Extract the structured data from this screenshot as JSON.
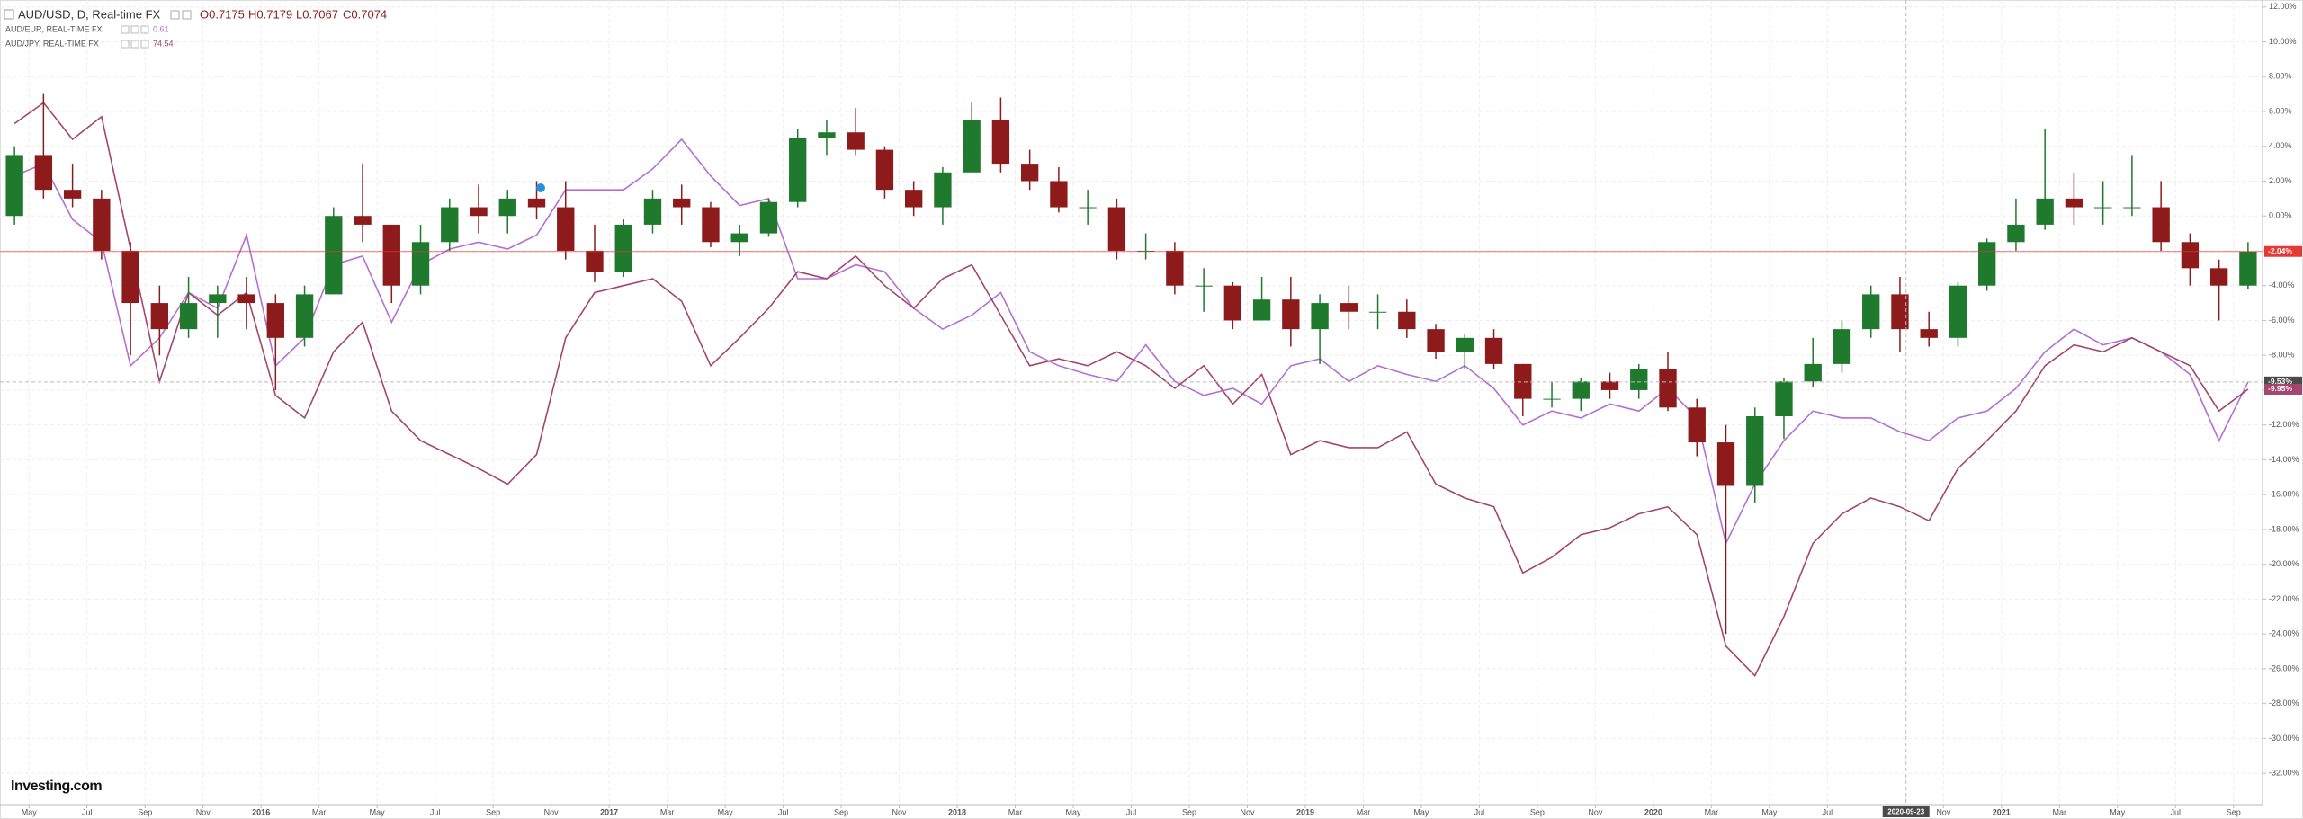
{
  "chart_data": {
    "type": "candlestick",
    "quote": [
      "O0.7175",
      "H0.7179",
      "L0.7067",
      "C0.7074"
    ],
    "logo": "Investing.com",
    "x": [
      "2015-04",
      "2015-05",
      "2015-06",
      "2015-07",
      "2015-08",
      "2015-09",
      "2015-10",
      "2015-11",
      "2015-12",
      "2016-01",
      "2016-02",
      "2016-03",
      "2016-04",
      "2016-05",
      "2016-06",
      "2016-07",
      "2016-08",
      "2016-09",
      "2016-10",
      "2016-11",
      "2016-12",
      "2017-01",
      "2017-02",
      "2017-03",
      "2017-04",
      "2017-05",
      "2017-06",
      "2017-07",
      "2017-08",
      "2017-09",
      "2017-10",
      "2017-11",
      "2017-12",
      "2018-01",
      "2018-02",
      "2018-03",
      "2018-04",
      "2018-05",
      "2018-06",
      "2018-07",
      "2018-08",
      "2018-09",
      "2018-10",
      "2018-11",
      "2018-12",
      "2019-01",
      "2019-02",
      "2019-03",
      "2019-04",
      "2019-05",
      "2019-06",
      "2019-07",
      "2019-08",
      "2019-09",
      "2019-10",
      "2019-11",
      "2019-12",
      "2020-01",
      "2020-02",
      "2020-03",
      "2020-04",
      "2020-05",
      "2020-06",
      "2020-07",
      "2020-08",
      "2020-09",
      "2020-10",
      "2020-11",
      "2020-12",
      "2021-01",
      "2021-02",
      "2021-03",
      "2021-04",
      "2021-05",
      "2021-06",
      "2021-07",
      "2021-08",
      "2021-09"
    ],
    "series": [
      {
        "name": "AUD/USD, D, Real-time FX",
        "type": "candlestick",
        "up_color": "#1f7a2e",
        "down_color": "#8e1b1b",
        "color": "#e53935",
        "last_value_label": "-2.04%",
        "open": [
          0,
          3.5,
          1.5,
          1.0,
          -2.0,
          -5.0,
          -6.5,
          -5.0,
          -4.5,
          -5.0,
          -7.0,
          -4.5,
          0.0,
          -0.5,
          -4.0,
          -1.5,
          0.5,
          0.0,
          1.0,
          0.5,
          -2.0,
          -3.2,
          -0.5,
          1.0,
          0.5,
          -1.5,
          -1.0,
          0.8,
          4.5,
          4.8,
          3.8,
          1.5,
          0.5,
          2.5,
          5.5,
          3.0,
          2.0,
          0.5,
          0.5,
          -2.0,
          -2.0,
          -4.0,
          -4.0,
          -6.0,
          -4.8,
          -6.5,
          -5.0,
          -5.5,
          -5.5,
          -6.5,
          -7.8,
          -7.0,
          -8.5,
          -10.5,
          -10.5,
          -9.5,
          -10.0,
          -8.8,
          -11.0,
          -13.0,
          -15.5,
          -11.5,
          -9.5,
          -8.5,
          -6.5,
          -4.5,
          -6.5,
          -7.0,
          -4.0,
          -1.5,
          -0.5,
          1.0,
          0.5,
          0.5,
          0.5,
          -1.5,
          -3.0,
          -4.0
        ],
        "high": [
          4,
          7,
          3,
          1.5,
          -1.5,
          -4,
          -3.5,
          -4,
          -3.5,
          -4.5,
          -4,
          0.5,
          3,
          -0.5,
          -0.5,
          1,
          1.8,
          1.5,
          2,
          2,
          -0.5,
          -0.2,
          1.5,
          1.8,
          0.8,
          -0.5,
          1,
          5,
          5.5,
          6.2,
          4,
          2,
          2.8,
          6.5,
          6.8,
          3.8,
          2.8,
          1.5,
          1,
          -1,
          -1.5,
          -3,
          -3.8,
          -3.5,
          -3.5,
          -4.5,
          -4,
          -4.5,
          -4.8,
          -6.2,
          -6.8,
          -6.5,
          -8.5,
          -9.5,
          -9.3,
          -9,
          -8.5,
          -7.8,
          -10.5,
          -12,
          -11,
          -9.3,
          -7,
          -6,
          -4,
          -3.5,
          -5.5,
          -3.8,
          -1.3,
          1,
          5,
          2.5,
          2,
          3.5,
          2,
          -1,
          -2.5,
          -1.5
        ],
        "low": [
          -0.5,
          1,
          0.5,
          -2.5,
          -8,
          -8,
          -7,
          -7,
          -6.5,
          -10,
          -7.5,
          -4.5,
          -1.5,
          -5,
          -4.5,
          -2,
          -1,
          -1,
          -0.2,
          -2.5,
          -3.8,
          -3.5,
          -1,
          -0.5,
          -1.8,
          -2.3,
          -1.2,
          0.5,
          3.5,
          3.5,
          1,
          0,
          -0.5,
          2.5,
          2.5,
          1.5,
          0.2,
          -0.5,
          -2.5,
          -2.5,
          -4.5,
          -5.5,
          -6.5,
          -6,
          -7.5,
          -8.5,
          -6.5,
          -6.5,
          -7,
          -8.2,
          -8.8,
          -8.8,
          -11.5,
          -11,
          -11.2,
          -10.5,
          -10.5,
          -11.2,
          -13.8,
          -24,
          -16.5,
          -12.8,
          -9.8,
          -9,
          -7,
          -7.8,
          -7.5,
          -7.5,
          -4.3,
          -2,
          -0.8,
          -0.5,
          -0.5,
          0,
          -2,
          -4,
          -6,
          -4.2
        ],
        "close": [
          3.5,
          1.5,
          1.0,
          -2.0,
          -5.0,
          -6.5,
          -5.0,
          -4.5,
          -5.0,
          -7.0,
          -4.5,
          0.0,
          -0.5,
          -4.0,
          -1.5,
          0.5,
          0.0,
          1.0,
          0.5,
          -2.0,
          -3.2,
          -0.5,
          1.0,
          0.5,
          -1.5,
          -1.0,
          0.8,
          4.5,
          4.8,
          3.8,
          1.5,
          0.5,
          2.5,
          5.5,
          3.0,
          2.0,
          0.5,
          0.5,
          -2.0,
          -2.0,
          -4.0,
          -4.0,
          -6.0,
          -4.8,
          -6.5,
          -5.0,
          -5.5,
          -5.5,
          -6.5,
          -7.8,
          -7.0,
          -8.5,
          -10.5,
          -10.5,
          -9.5,
          -10.0,
          -8.8,
          -11.0,
          -13.0,
          -15.5,
          -11.5,
          -9.5,
          -8.5,
          -6.5,
          -4.5,
          -6.5,
          -7.0,
          -4.0,
          -1.5,
          -0.5,
          1.0,
          0.5,
          0.5,
          0.5,
          -1.5,
          -3.0,
          -4.0,
          -2.04
        ]
      },
      {
        "name": "AUD/EUR, REAL-TIME FX",
        "type": "line",
        "color": "#b36fd1",
        "price": 0.61,
        "values": [
          2.3,
          3.0,
          -0.2,
          -1.5,
          -8.6,
          -7.0,
          -4.4,
          -5.3,
          -1.1,
          -8.6,
          -7.0,
          -2.8,
          -2.3,
          -6.1,
          -2.8,
          -1.9,
          -1.5,
          -1.9,
          -1.1,
          1.5,
          1.5,
          1.5,
          2.7,
          4.4,
          2.3,
          0.6,
          1.0,
          -3.6,
          -3.6,
          -2.8,
          -3.2,
          -5.3,
          -6.5,
          -5.7,
          -4.4,
          -7.8,
          -8.6,
          -9.1,
          -9.5,
          -7.4,
          -9.5,
          -10.3,
          -9.9,
          -10.8,
          -8.6,
          -8.2,
          -9.5,
          -8.6,
          -9.1,
          -9.5,
          -8.6,
          -9.9,
          -12.0,
          -11.2,
          -11.6,
          -10.8,
          -11.2,
          -9.9,
          -11.6,
          -18.8,
          -15.4,
          -12.9,
          -11.2,
          -11.6,
          -11.6,
          -12.4,
          -12.9,
          -11.6,
          -11.2,
          -9.9,
          -7.8,
          -6.5,
          -7.4,
          -7.0,
          -7.8,
          -9.1,
          -12.9,
          -9.53
        ]
      },
      {
        "name": "AUD/JPY, REAL-TIME FX",
        "type": "line",
        "color": "#a4456f",
        "price": 74.54,
        "last_value_label": "-9.95%",
        "values": [
          5.3,
          6.5,
          4.4,
          5.7,
          -1.9,
          -9.5,
          -4.4,
          -5.7,
          -4.4,
          -10.3,
          -11.6,
          -7.8,
          -6.1,
          -11.2,
          -12.9,
          -13.7,
          -14.5,
          -15.4,
          -13.7,
          -7.0,
          -4.4,
          -4.0,
          -3.6,
          -4.9,
          -8.6,
          -7.0,
          -5.3,
          -3.2,
          -3.6,
          -2.3,
          -4.0,
          -5.3,
          -3.6,
          -2.8,
          -5.7,
          -8.6,
          -8.2,
          -8.6,
          -7.8,
          -8.6,
          -9.9,
          -8.6,
          -10.8,
          -9.1,
          -13.7,
          -12.9,
          -13.3,
          -13.3,
          -12.4,
          -15.4,
          -16.2,
          -16.7,
          -20.5,
          -19.6,
          -18.3,
          -17.9,
          -17.1,
          -16.7,
          -18.3,
          -24.7,
          -26.4,
          -23.0,
          -18.8,
          -17.1,
          -16.2,
          -16.7,
          -17.5,
          -14.5,
          -12.9,
          -11.2,
          -8.6,
          -7.4,
          -7.8,
          -7.0,
          -7.8,
          -8.6,
          -11.2,
          -9.95
        ]
      }
    ],
    "crosshair": {
      "date": "2020-09-23",
      "value": -9.53,
      "label": "-9.53%"
    },
    "xlim": [
      "2015-04",
      "2021-10"
    ],
    "xticks": [
      {
        "value": "2015-05",
        "label": "May"
      },
      {
        "value": "2015-07",
        "label": "Jul"
      },
      {
        "value": "2015-09",
        "label": "Sep"
      },
      {
        "value": "2015-11",
        "label": "Nov"
      },
      {
        "value": "2016-01",
        "label": "2016"
      },
      {
        "value": "2016-03",
        "label": "Mar"
      },
      {
        "value": "2016-05",
        "label": "May"
      },
      {
        "value": "2016-07",
        "label": "Jul"
      },
      {
        "value": "2016-09",
        "label": "Sep"
      },
      {
        "value": "2016-11",
        "label": "Nov"
      },
      {
        "value": "2017-01",
        "label": "2017"
      },
      {
        "value": "2017-03",
        "label": "Mar"
      },
      {
        "value": "2017-05",
        "label": "May"
      },
      {
        "value": "2017-07",
        "label": "Jul"
      },
      {
        "value": "2017-09",
        "label": "Sep"
      },
      {
        "value": "2017-11",
        "label": "Nov"
      },
      {
        "value": "2018-01",
        "label": "2018"
      },
      {
        "value": "2018-03",
        "label": "Mar"
      },
      {
        "value": "2018-05",
        "label": "May"
      },
      {
        "value": "2018-07",
        "label": "Jul"
      },
      {
        "value": "2018-09",
        "label": "Sep"
      },
      {
        "value": "2018-11",
        "label": "Nov"
      },
      {
        "value": "2019-01",
        "label": "2019"
      },
      {
        "value": "2019-03",
        "label": "Mar"
      },
      {
        "value": "2019-05",
        "label": "May"
      },
      {
        "value": "2019-07",
        "label": "Jul"
      },
      {
        "value": "2019-09",
        "label": "Sep"
      },
      {
        "value": "2019-11",
        "label": "Nov"
      },
      {
        "value": "2020-01",
        "label": "2020"
      },
      {
        "value": "2020-03",
        "label": "Mar"
      },
      {
        "value": "2020-05",
        "label": "May"
      },
      {
        "value": "2020-07",
        "label": "Jul"
      },
      {
        "value": "2020-11",
        "label": "Nov"
      },
      {
        "value": "2021-01",
        "label": "2021"
      },
      {
        "value": "2021-03",
        "label": "Mar"
      },
      {
        "value": "2021-05",
        "label": "May"
      },
      {
        "value": "2021-07",
        "label": "Jul"
      },
      {
        "value": "2021-09",
        "label": "Sep"
      }
    ],
    "ylim": [
      -33.8,
      12.4
    ],
    "yticks": [
      {
        "value": 12,
        "label": "12.00%"
      },
      {
        "value": 10,
        "label": "10.00%"
      },
      {
        "value": 8,
        "label": "8.00%"
      },
      {
        "value": 6,
        "label": "6.00%"
      },
      {
        "value": 4,
        "label": "4.00%"
      },
      {
        "value": 2,
        "label": "2.00%"
      },
      {
        "value": 0,
        "label": "0.00%"
      },
      {
        "value": -2,
        "label": "-2.00%"
      },
      {
        "value": -4,
        "label": "-4.00%"
      },
      {
        "value": -6,
        "label": "-6.00%"
      },
      {
        "value": -8,
        "label": "-8.00%"
      },
      {
        "value": -10,
        "label": "-10.00%"
      },
      {
        "value": -12,
        "label": "-12.00%"
      },
      {
        "value": -14,
        "label": "-14.00%"
      },
      {
        "value": -16,
        "label": "-16.00%"
      },
      {
        "value": -18,
        "label": "-18.00%"
      },
      {
        "value": -20,
        "label": "-20.00%"
      },
      {
        "value": -22,
        "label": "-22.00%"
      },
      {
        "value": -24,
        "label": "-24.00%"
      },
      {
        "value": -26,
        "label": "-26.00%"
      },
      {
        "value": -28,
        "label": "-28.00%"
      },
      {
        "value": -30,
        "label": "-30.00%"
      },
      {
        "value": -32,
        "label": "-32.00%"
      }
    ],
    "grid": true
  }
}
